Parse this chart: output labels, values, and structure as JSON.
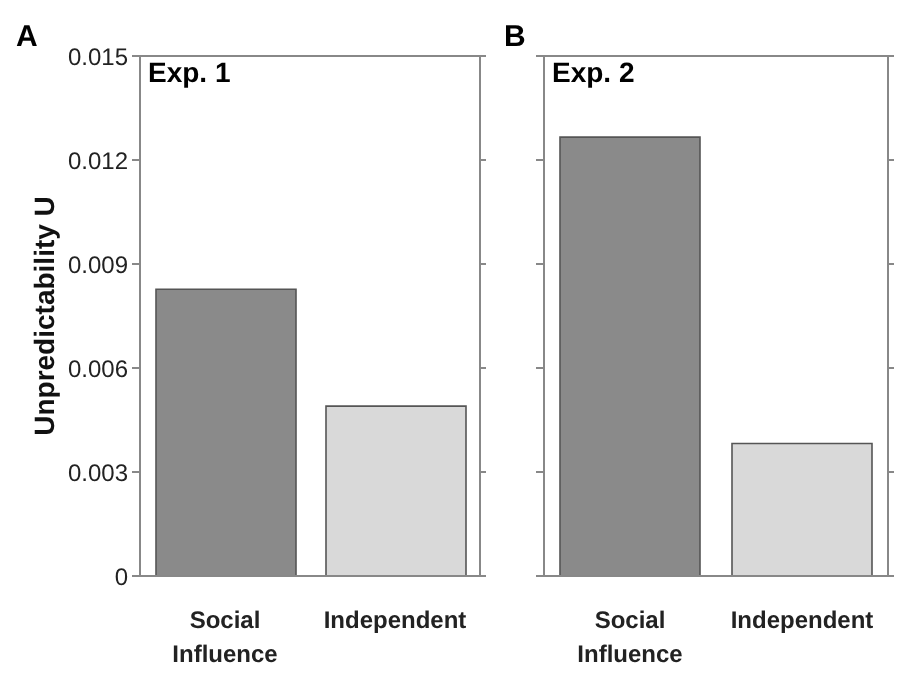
{
  "chart_data": [
    {
      "type": "bar",
      "title": "Exp. 1",
      "annotations": [
        "A"
      ],
      "ylabel": "Unpredictability U",
      "categories": [
        "Social Influence",
        "Independent"
      ],
      "values": [
        0.00827,
        0.0049
      ],
      "colors": [
        "#8a8a8a",
        "#d9d9d9"
      ],
      "ylim": [
        0,
        0.015
      ],
      "yticks": [
        0,
        0.003,
        0.006,
        0.009,
        0.012,
        0.015
      ],
      "grid": false
    },
    {
      "type": "bar",
      "title": "Exp. 2",
      "annotations": [
        "B"
      ],
      "categories": [
        "Social Influence",
        "Independent"
      ],
      "values": [
        0.01266,
        0.00382
      ],
      "colors": [
        "#8a8a8a",
        "#d9d9d9"
      ],
      "ylim": [
        0,
        0.015
      ],
      "yticks": [
        0,
        0.003,
        0.006,
        0.009,
        0.012,
        0.015
      ],
      "grid": false,
      "tick_labels": "x"
    }
  ]
}
